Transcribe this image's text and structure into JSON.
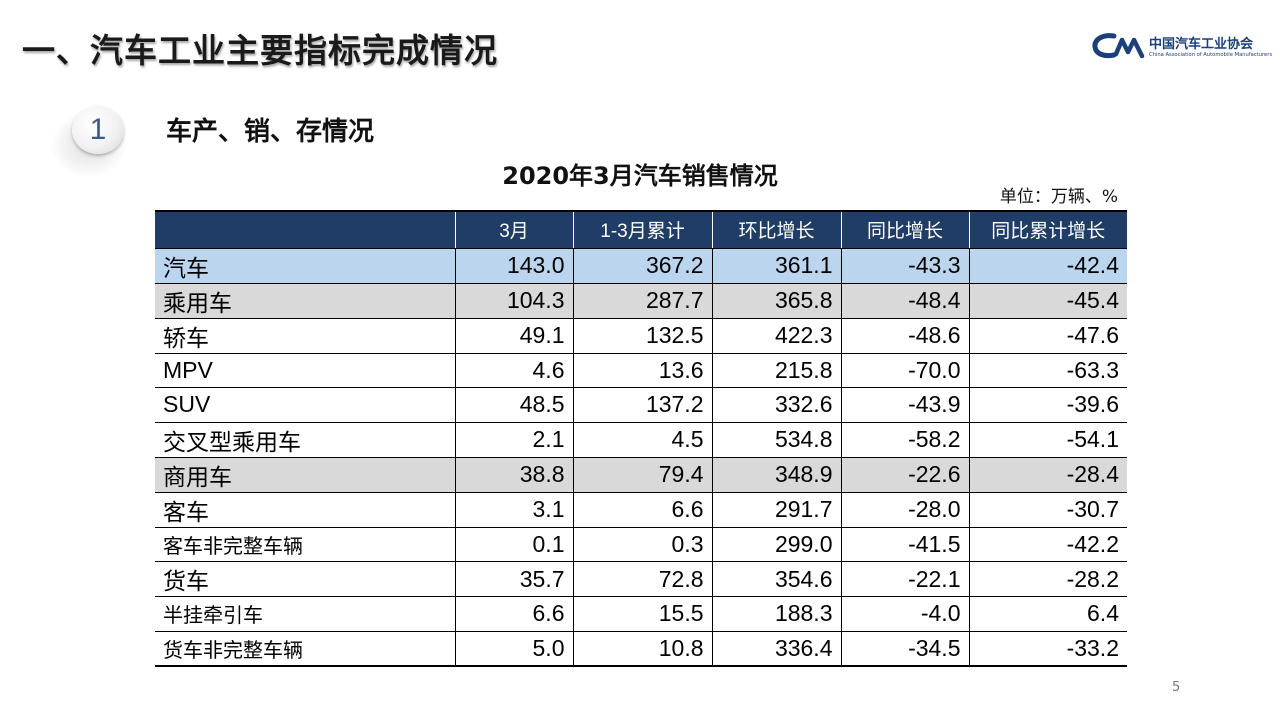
{
  "slide": {
    "title": "一、汽车工业主要指标完成情况",
    "section_number": "1",
    "section_title": "车产、销、存情况",
    "page_number": "5"
  },
  "logo": {
    "name_cn": "中国汽车工业协会",
    "name_en": "China Association of Automobile Manufacturers",
    "brand_color": "#1b3f78"
  },
  "table": {
    "title": "2020年3月汽车销售情况",
    "unit": "单位：万辆、%",
    "columns": [
      "",
      "3月",
      "1-3月累计",
      "环比增长",
      "同比增长",
      "同比累计增长"
    ],
    "rows": [
      {
        "label": "汽车",
        "level": 0,
        "style": "total",
        "values": [
          "143.0",
          "367.2",
          "361.1",
          "-43.3",
          "-42.4"
        ]
      },
      {
        "label": "乘用车",
        "level": 1,
        "style": "sub",
        "values": [
          "104.3",
          "287.7",
          "365.8",
          "-48.4",
          "-45.4"
        ]
      },
      {
        "label": "轿车",
        "level": 2,
        "style": "",
        "values": [
          "49.1",
          "132.5",
          "422.3",
          "-48.6",
          "-47.6"
        ]
      },
      {
        "label": "MPV",
        "level": 2,
        "style": "",
        "values": [
          "4.6",
          "13.6",
          "215.8",
          "-70.0",
          "-63.3"
        ]
      },
      {
        "label": "SUV",
        "level": 2,
        "style": "",
        "values": [
          "48.5",
          "137.2",
          "332.6",
          "-43.9",
          "-39.6"
        ]
      },
      {
        "label": "交叉型乘用车",
        "level": 2,
        "style": "",
        "values": [
          "2.1",
          "4.5",
          "534.8",
          "-58.2",
          "-54.1"
        ]
      },
      {
        "label": "商用车",
        "level": 1,
        "style": "sub",
        "values": [
          "38.8",
          "79.4",
          "348.9",
          "-22.6",
          "-28.4"
        ]
      },
      {
        "label": "客车",
        "level": 2,
        "style": "",
        "values": [
          "3.1",
          "6.6",
          "291.7",
          "-28.0",
          "-30.7"
        ]
      },
      {
        "label": "客车非完整车辆",
        "level": 3,
        "style": "",
        "values": [
          "0.1",
          "0.3",
          "299.0",
          "-41.5",
          "-42.2"
        ]
      },
      {
        "label": "货车",
        "level": 2,
        "style": "",
        "values": [
          "35.7",
          "72.8",
          "354.6",
          "-22.1",
          "-28.2"
        ]
      },
      {
        "label": "半挂牵引车",
        "level": 3,
        "style": "",
        "values": [
          "6.6",
          "15.5",
          "188.3",
          "-4.0",
          "6.4"
        ]
      },
      {
        "label": "货车非完整车辆",
        "level": 3,
        "style": "",
        "values": [
          "5.0",
          "10.8",
          "336.4",
          "-34.5",
          "-33.2"
        ]
      }
    ]
  },
  "colors": {
    "header_bg": "#1f3d66",
    "total_row_bg": "#bcd5ee",
    "subtotal_row_bg": "#d9d9d9"
  }
}
